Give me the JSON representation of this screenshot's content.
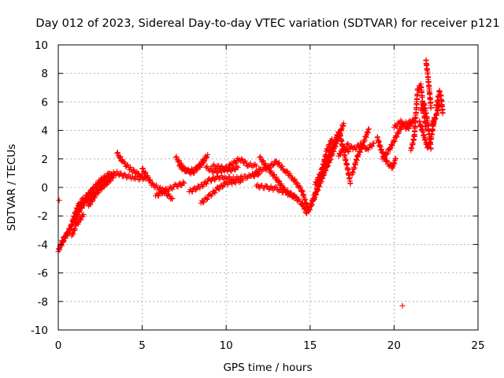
{
  "chart_data": {
    "type": "scatter",
    "title": "Day 012 of 2023, Sidereal Day-to-day VTEC variation (SDTVAR) for receiver p121",
    "xlabel": "GPS time / hours",
    "ylabel": "SDTVAR / TECUs",
    "xlim": [
      0,
      25
    ],
    "ylim": [
      -10,
      10
    ],
    "xticks": [
      0,
      5,
      10,
      15,
      20,
      25
    ],
    "yticks": [
      -10,
      -8,
      -6,
      -4,
      -2,
      0,
      2,
      4,
      6,
      8,
      10
    ],
    "grid": true,
    "marker": "+",
    "series_color": "#ff0000",
    "series": [
      {
        "name": "SDTVAR",
        "tracks": [
          [
            [
              0.0,
              -4.5
            ],
            [
              0.3,
              -3.6
            ],
            [
              0.7,
              -3.0
            ],
            [
              1.0,
              -1.8
            ],
            [
              1.3,
              -1.0
            ],
            [
              1.7,
              -0.6
            ],
            [
              2.0,
              -0.2
            ],
            [
              2.5,
              0.5
            ],
            [
              3.0,
              0.9
            ],
            [
              3.5,
              1.0
            ],
            [
              4.0,
              0.8
            ],
            [
              4.5,
              0.7
            ],
            [
              5.0,
              0.6
            ]
          ],
          [
            [
              0.1,
              -4.2
            ],
            [
              0.5,
              -3.3
            ],
            [
              0.9,
              -2.4
            ],
            [
              1.2,
              -1.7
            ],
            [
              1.5,
              -1.2
            ],
            [
              2.0,
              -0.6
            ],
            [
              2.5,
              0.0
            ],
            [
              3.0,
              0.4
            ],
            [
              3.3,
              0.8
            ]
          ],
          [
            [
              1.0,
              -2.4
            ],
            [
              1.3,
              -1.4
            ],
            [
              1.7,
              -0.7
            ],
            [
              2.2,
              0.0
            ],
            [
              2.8,
              0.6
            ],
            [
              3.2,
              0.9
            ]
          ],
          [
            [
              1.8,
              -1.3
            ],
            [
              2.3,
              -0.4
            ],
            [
              2.7,
              0.1
            ],
            [
              3.0,
              0.5
            ]
          ],
          [
            [
              0.8,
              -3.4
            ],
            [
              1.1,
              -2.6
            ],
            [
              1.5,
              -1.9
            ]
          ],
          [
            [
              3.5,
              2.4
            ],
            [
              3.9,
              1.7
            ],
            [
              4.3,
              1.3
            ],
            [
              4.8,
              0.9
            ],
            [
              5.2,
              0.6
            ]
          ],
          [
            [
              5.0,
              1.3
            ],
            [
              5.6,
              0.2
            ],
            [
              6.2,
              -0.2
            ],
            [
              6.8,
              -0.8
            ]
          ],
          [
            [
              5.8,
              -0.6
            ],
            [
              6.4,
              -0.2
            ],
            [
              7.0,
              0.1
            ],
            [
              7.5,
              0.3
            ]
          ],
          [
            [
              7.0,
              2.1
            ],
            [
              7.5,
              1.3
            ],
            [
              8.0,
              1.0
            ],
            [
              8.5,
              1.6
            ],
            [
              8.9,
              2.3
            ]
          ],
          [
            [
              7.2,
              1.5
            ],
            [
              7.7,
              1.1
            ],
            [
              8.2,
              1.3
            ],
            [
              8.7,
              1.9
            ]
          ],
          [
            [
              7.8,
              -0.3
            ],
            [
              8.5,
              0.1
            ],
            [
              9.0,
              0.5
            ],
            [
              9.5,
              0.7
            ],
            [
              10.0,
              0.7
            ],
            [
              10.5,
              0.6
            ],
            [
              11.0,
              0.7
            ],
            [
              11.5,
              0.8
            ],
            [
              12.0,
              1.0
            ]
          ],
          [
            [
              8.5,
              -1.1
            ],
            [
              9.0,
              -0.6
            ],
            [
              9.5,
              -0.1
            ],
            [
              10.0,
              0.3
            ],
            [
              10.5,
              0.4
            ],
            [
              11.0,
              0.5
            ]
          ],
          [
            [
              8.8,
              1.4
            ],
            [
              9.3,
              1.1
            ],
            [
              9.8,
              1.2
            ],
            [
              10.3,
              1.6
            ],
            [
              10.8,
              2.0
            ],
            [
              11.3,
              1.6
            ],
            [
              11.8,
              1.5
            ]
          ],
          [
            [
              9.2,
              1.5
            ],
            [
              9.7,
              1.4
            ],
            [
              10.2,
              1.2
            ],
            [
              10.7,
              1.4
            ]
          ],
          [
            [
              11.5,
              0.8
            ],
            [
              12.0,
              1.2
            ],
            [
              12.5,
              1.4
            ],
            [
              13.0,
              1.8
            ],
            [
              13.5,
              1.2
            ],
            [
              14.0,
              0.6
            ],
            [
              14.5,
              -0.2
            ],
            [
              14.9,
              -1.6
            ]
          ],
          [
            [
              12.0,
              2.1
            ],
            [
              12.5,
              1.3
            ],
            [
              13.0,
              0.6
            ],
            [
              13.5,
              -0.2
            ],
            [
              14.0,
              -0.6
            ],
            [
              14.5,
              -1.1
            ],
            [
              14.8,
              -1.8
            ]
          ],
          [
            [
              11.8,
              0.1
            ],
            [
              12.4,
              0.0
            ],
            [
              13.0,
              -0.1
            ],
            [
              13.6,
              -0.4
            ],
            [
              14.2,
              -0.7
            ]
          ],
          [
            [
              14.9,
              -1.7
            ],
            [
              15.2,
              -0.9
            ],
            [
              15.5,
              0.0
            ],
            [
              15.8,
              0.9
            ],
            [
              16.2,
              2.0
            ],
            [
              16.6,
              3.2
            ],
            [
              17.0,
              4.5
            ]
          ],
          [
            [
              15.0,
              -1.3
            ],
            [
              15.3,
              -0.5
            ],
            [
              15.6,
              0.6
            ],
            [
              15.9,
              1.6
            ],
            [
              16.3,
              2.8
            ],
            [
              16.7,
              3.9
            ]
          ],
          [
            [
              15.3,
              0.2
            ],
            [
              15.7,
              1.2
            ],
            [
              16.0,
              2.6
            ],
            [
              16.3,
              3.4
            ]
          ],
          [
            [
              16.8,
              3.6
            ],
            [
              17.0,
              2.5
            ],
            [
              17.2,
              1.5
            ],
            [
              17.4,
              0.3
            ]
          ],
          [
            [
              17.5,
              0.9
            ],
            [
              17.8,
              2.1
            ],
            [
              18.1,
              2.9
            ],
            [
              18.5,
              4.1
            ]
          ],
          [
            [
              17.2,
              3.0
            ],
            [
              17.6,
              2.7
            ],
            [
              18.0,
              3.0
            ],
            [
              18.4,
              2.7
            ],
            [
              18.8,
              3.1
            ]
          ],
          [
            [
              16.7,
              2.2
            ],
            [
              17.0,
              2.8
            ],
            [
              17.3,
              2.5
            ]
          ],
          [
            [
              19.0,
              3.5
            ],
            [
              19.3,
              2.4
            ],
            [
              19.6,
              1.7
            ],
            [
              19.9,
              1.4
            ],
            [
              20.1,
              2.0
            ]
          ],
          [
            [
              19.3,
              2.0
            ],
            [
              19.7,
              2.6
            ],
            [
              20.1,
              3.5
            ],
            [
              20.5,
              4.4
            ],
            [
              21.0,
              4.6
            ]
          ],
          [
            [
              20.0,
              4.2
            ],
            [
              20.4,
              4.6
            ],
            [
              20.8,
              4.1
            ],
            [
              21.2,
              4.8
            ]
          ],
          [
            [
              21.0,
              2.6
            ],
            [
              21.2,
              3.5
            ],
            [
              21.4,
              6.8
            ],
            [
              21.6,
              7.2
            ],
            [
              21.7,
              6.0
            ],
            [
              21.9,
              4.1
            ]
          ],
          [
            [
              21.5,
              4.6
            ],
            [
              21.7,
              3.9
            ],
            [
              22.0,
              2.8
            ],
            [
              22.2,
              3.4
            ],
            [
              22.4,
              4.9
            ]
          ],
          [
            [
              21.9,
              8.9
            ],
            [
              22.0,
              8.0
            ],
            [
              22.1,
              6.8
            ],
            [
              22.2,
              5.6
            ]
          ],
          [
            [
              21.6,
              5.4
            ],
            [
              21.8,
              5.8
            ],
            [
              22.0,
              4.6
            ],
            [
              22.2,
              2.7
            ]
          ],
          [
            [
              22.5,
              5.6
            ],
            [
              22.7,
              6.7
            ],
            [
              22.8,
              6.3
            ],
            [
              22.9,
              5.2
            ]
          ],
          [
            [
              22.3,
              4.4
            ],
            [
              22.5,
              5.0
            ],
            [
              22.7,
              5.9
            ]
          ]
        ],
        "outliers": [
          [
            0.05,
            -0.9
          ],
          [
            20.5,
            -8.3
          ]
        ]
      }
    ]
  }
}
